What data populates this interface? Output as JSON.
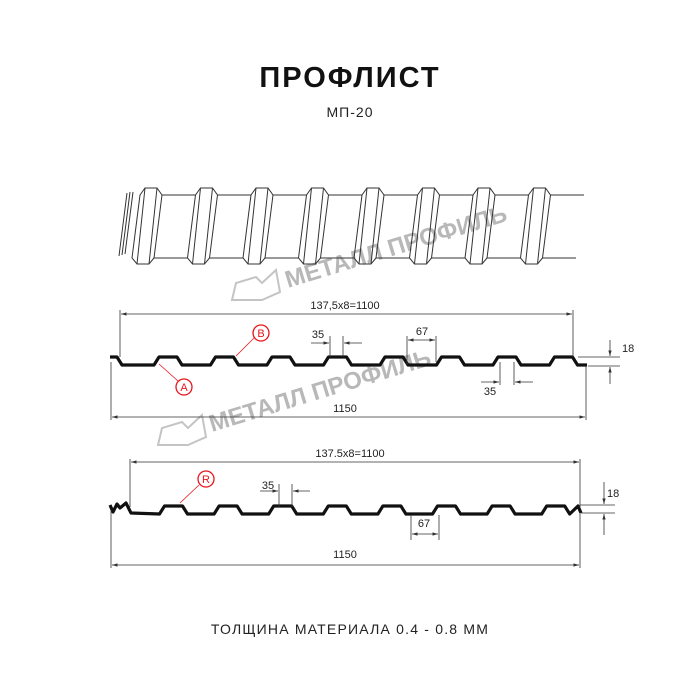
{
  "title": "ПРОФЛИСТ",
  "subtitle": "МП-20",
  "footer": "ТОЛЩИНА МАТЕРИАЛА 0.4 - 0.8 ММ",
  "watermark": "МЕТАЛЛ ПРОФИЛЬ",
  "colors": {
    "profile": "#111111",
    "dimension": "#333333",
    "marker": "#e8141b",
    "watermark": "#b0b0b0"
  },
  "profile_1": {
    "pitch_label": "137,5x8=1100",
    "width_label": "1150",
    "crest_label": "35",
    "valley_top_label": "67",
    "valley_label": "35",
    "height_label": "18",
    "marker_a": "A",
    "marker_b": "B"
  },
  "profile_2": {
    "pitch_label": "137.5x8=1100",
    "width_label": "1150",
    "crest_label": "35",
    "valley_label": "67",
    "height_label": "18",
    "marker_r": "R"
  }
}
